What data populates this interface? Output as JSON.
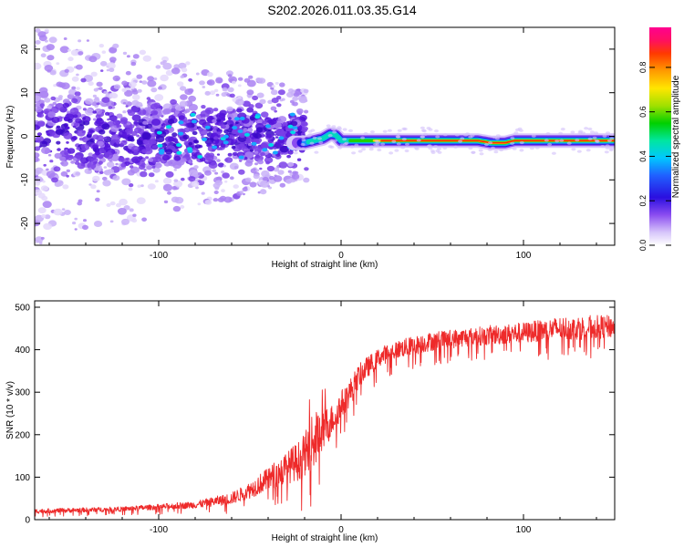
{
  "title": "S202.2026.011.03.35.G14",
  "colors": {
    "snr_line": "#ee2a2a",
    "axis": "#000000",
    "spectrogram_low": "#b59cf2",
    "spectrogram_mid": "#4a0fe0"
  },
  "chart_data": [
    {
      "type": "heatmap",
      "name": "spectrogram",
      "xlabel": "Height of straight line (km)",
      "ylabel": "Frequency (Hz)",
      "xlim": [
        -168,
        150
      ],
      "ylim": [
        -25,
        25
      ],
      "xticks": [
        -100,
        0,
        100
      ],
      "xtick_labels": [
        "-100",
        "0",
        "100"
      ],
      "yticks": [
        -20,
        -10,
        0,
        10,
        20
      ],
      "ytick_labels": [
        "-20",
        "-10",
        "0",
        "10",
        "20"
      ],
      "ridge_frequency_hz": [
        [
          -20,
          -1.5
        ],
        [
          -10,
          -0.5
        ],
        [
          -6,
          0.5
        ],
        [
          -3,
          0.3
        ],
        [
          0,
          -1
        ],
        [
          10,
          -1
        ],
        [
          25,
          -1
        ],
        [
          40,
          -1
        ],
        [
          75,
          -1
        ],
        [
          82,
          -1.5
        ],
        [
          90,
          -1.5
        ],
        [
          95,
          -1
        ],
        [
          110,
          -1
        ],
        [
          150,
          -1
        ]
      ],
      "noisy_region_x_km": [
        -168,
        -25
      ],
      "colorbar": {
        "label": "Normalized spectral amplitude",
        "range": [
          0,
          0.98
        ],
        "ticks": [
          0.0,
          0.2,
          0.4,
          0.6,
          0.8
        ],
        "tick_labels": [
          "0.0",
          "0.2",
          "0.4",
          "0.6",
          "0.8"
        ]
      }
    },
    {
      "type": "line",
      "name": "snr",
      "xlabel": "Height of straight line (km)",
      "ylabel": "SNR (10 * v/v)",
      "xlim": [
        -168,
        150
      ],
      "ylim": [
        0,
        515
      ],
      "xticks": [
        -100,
        0,
        100
      ],
      "xtick_labels": [
        "-100",
        "0",
        "100"
      ],
      "yticks": [
        0,
        100,
        200,
        300,
        400,
        500
      ],
      "ytick_labels": [
        "0",
        "100",
        "200",
        "300",
        "400",
        "500"
      ],
      "series": [
        {
          "name": "SNR",
          "trend_x": [
            -168,
            -120,
            -100,
            -80,
            -60,
            -50,
            -40,
            -30,
            -20,
            -15,
            -10,
            -5,
            0,
            5,
            10,
            20,
            30,
            50,
            70,
            100,
            120,
            150
          ],
          "trend_y": [
            20,
            25,
            30,
            35,
            50,
            70,
            95,
            120,
            150,
            190,
            210,
            235,
            270,
            300,
            340,
            380,
            400,
            420,
            430,
            440,
            450,
            455
          ],
          "spread": [
            10,
            10,
            12,
            15,
            25,
            35,
            50,
            70,
            90,
            120,
            90,
            70,
            60,
            60,
            50,
            40,
            40,
            40,
            40,
            45,
            50,
            50
          ]
        }
      ]
    }
  ]
}
